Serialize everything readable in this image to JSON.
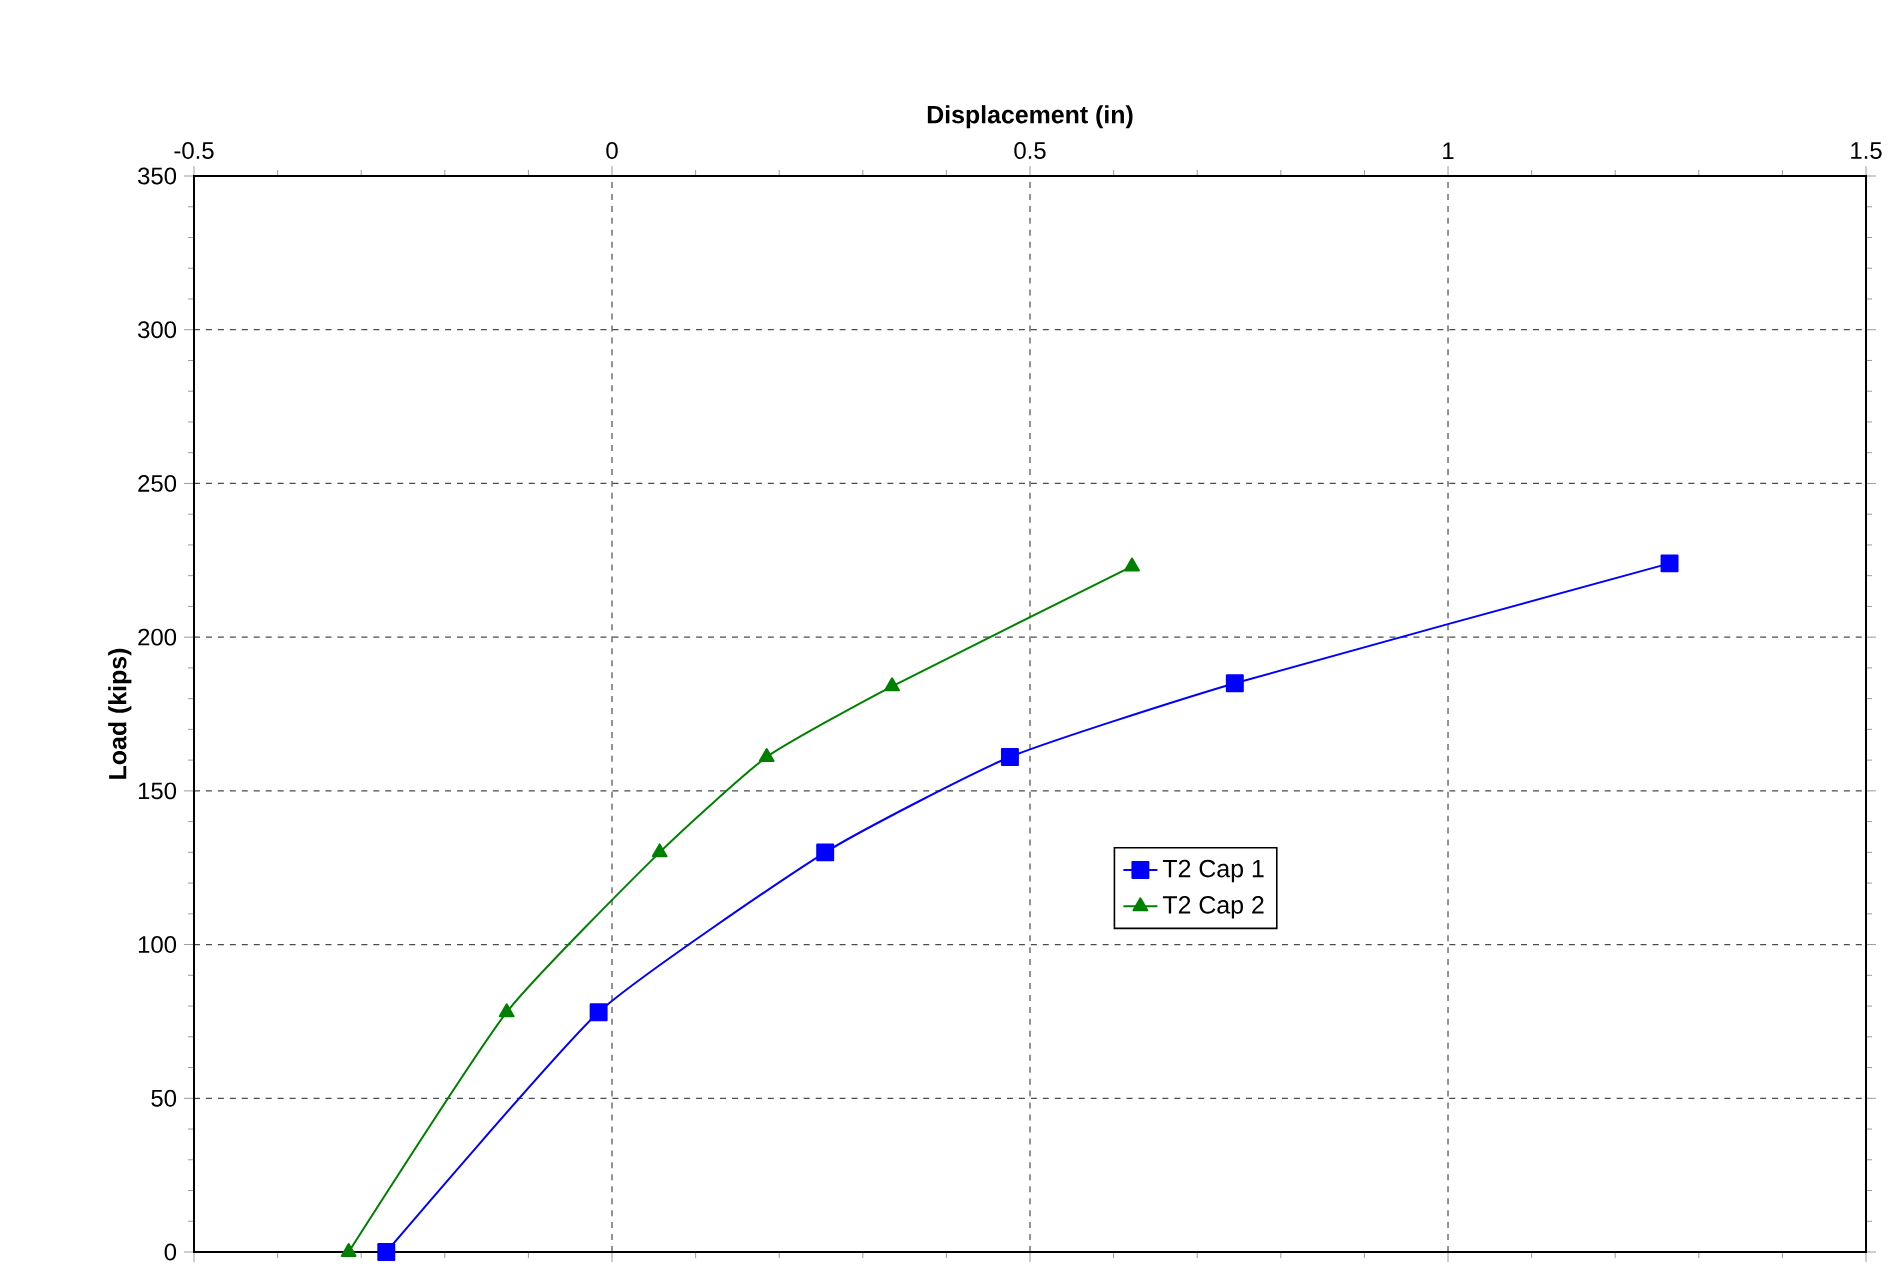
{
  "chart_data": {
    "type": "line",
    "xlabel": "Displacement (in)",
    "ylabel": "Load (kips)",
    "xlim": [
      -0.5,
      1.5
    ],
    "xticks": [
      -0.5,
      0,
      0.5,
      1,
      1.5
    ],
    "ylim": [
      0,
      350
    ],
    "yticks": [
      0,
      50,
      100,
      150,
      200,
      250,
      300,
      350
    ],
    "grid": true,
    "legend": "right",
    "line_style": "solid",
    "series": [
      {
        "name": "T2 Cap 1",
        "color": "#0000ff",
        "marker": "square",
        "x": [
          -0.27,
          -0.016,
          0.255,
          0.476,
          0.745,
          1.265
        ],
        "values": [
          0,
          78,
          130,
          161,
          185,
          224
        ]
      },
      {
        "name": "T2 Cap 2",
        "color": "#008000",
        "marker": "triangle",
        "x": [
          -0.315,
          -0.126,
          0.057,
          0.185,
          0.335,
          0.622
        ],
        "values": [
          0,
          78,
          130,
          161,
          184,
          223
        ]
      }
    ]
  }
}
